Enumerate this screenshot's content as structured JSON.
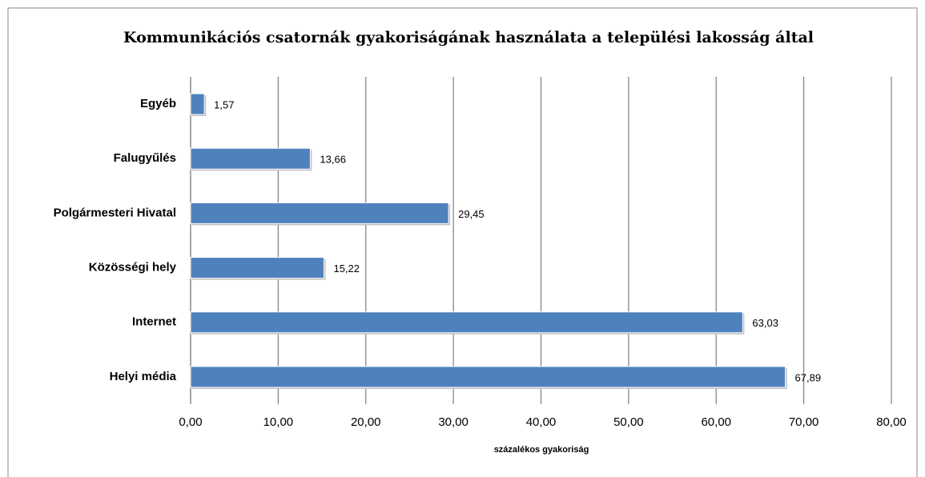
{
  "chart_data": {
    "type": "bar",
    "orientation": "horizontal",
    "title": "Kommunikációs csatornák gyakoriságának használata a települési lakosság által",
    "x_label": "százalékos gyakoriság",
    "categories": [
      "Egyéb",
      "Falugyűlés",
      "Polgármesteri Hivatal",
      "Közösségi hely",
      "Internet",
      "Helyi média"
    ],
    "values": [
      1.57,
      13.66,
      29.45,
      15.22,
      63.03,
      67.89
    ],
    "value_labels": [
      "1,57",
      "13,66",
      "29,45",
      "15,22",
      "63,03",
      "67,89"
    ],
    "color": "#4f81bd",
    "xlim": [
      0,
      80
    ],
    "xticks": [
      {
        "value": 0,
        "label": "0,00"
      },
      {
        "value": 10,
        "label": "10,00"
      },
      {
        "value": 20,
        "label": "20,00"
      },
      {
        "value": 30,
        "label": "30,00"
      },
      {
        "value": 40,
        "label": "40,00"
      },
      {
        "value": 50,
        "label": "50,00"
      },
      {
        "value": 60,
        "label": "60,00"
      },
      {
        "value": 70,
        "label": "70,00"
      },
      {
        "value": 80,
        "label": "80,00"
      }
    ],
    "grid": true
  }
}
